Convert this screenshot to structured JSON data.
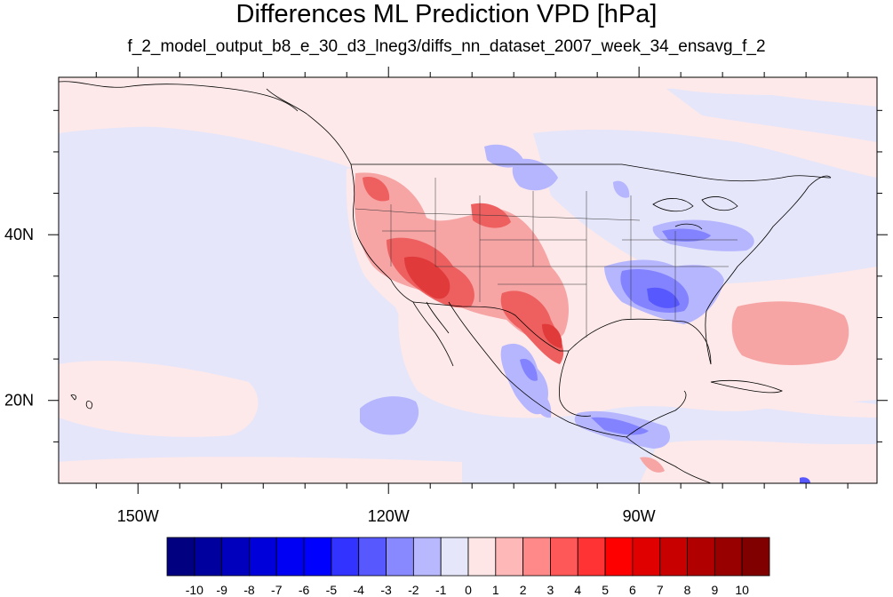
{
  "title": "Differences ML Prediction VPD [hPa]",
  "subtitle": "f_2_model_output_b8_e_30_d3_lneg3/diffs_nn_dataset_2007_week_34_ensavg_f_2",
  "axes": {
    "lon_ticks": [
      {
        "label": "150W",
        "lon": -150
      },
      {
        "label": "120W",
        "lon": -120
      },
      {
        "label": "90W",
        "lon": -90
      }
    ],
    "lat_ticks": [
      {
        "label": "40N",
        "lat": 40
      },
      {
        "label": "20N",
        "lat": 20
      }
    ],
    "lon_range": [
      -159.5,
      -61.5
    ],
    "lat_range": [
      10,
      59
    ]
  },
  "colorbar": {
    "labels": [
      "-10",
      "-9",
      "-8",
      "-7",
      "-6",
      "-5",
      "-4",
      "-3",
      "-2",
      "-1",
      "0",
      "1",
      "2",
      "3",
      "4",
      "5",
      "6",
      "7",
      "8",
      "9",
      "10"
    ],
    "colors": [
      "#000080",
      "#00009e",
      "#0000bd",
      "#0000db",
      "#0000f5",
      "#0000ff",
      "#3333ff",
      "#5858ff",
      "#8888ff",
      "#b8b8ff",
      "#e6e6fa",
      "#ffe6e6",
      "#ffb8b8",
      "#ff8888",
      "#ff5858",
      "#ff3333",
      "#ff0000",
      "#e00000",
      "#c80000",
      "#b00000",
      "#980000",
      "#800000"
    ]
  },
  "colors": {
    "ocean_background": "#fde9e9",
    "light_blue": "#e6e6fa",
    "light_red": "#fbd0d0",
    "mid_red": "#f7a4a4",
    "strong_red": "#ee6060",
    "deep_red": "#e03a3a",
    "mid_blue": "#b6b6ff",
    "strong_blue": "#8383ff",
    "deep_blue": "#5858ff"
  }
}
